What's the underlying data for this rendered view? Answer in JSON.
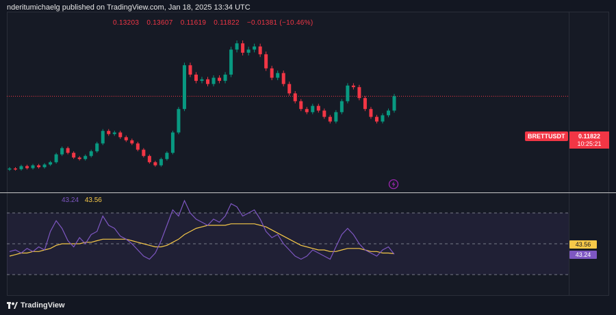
{
  "header": {
    "published_by": "nderitumichaelg published on TradingView.com, Jan 18, 2025 13:34 UTC"
  },
  "ohlc": {
    "open": "0.13203",
    "high": "0.13607",
    "low": "0.11619",
    "close": "0.11822",
    "change": "−0.01381 (−10.46%)"
  },
  "symbol": "BRETTUSDT",
  "last_price": {
    "value": "0.11822",
    "countdown": "10:25:21"
  },
  "rsi": {
    "rsi_value": "43.24",
    "ma_value": "43.56"
  },
  "footer": {
    "brand": "TradingView"
  },
  "colors": {
    "up": "#089981",
    "down": "#f23645",
    "rsi": "#7e57c2",
    "rsi_ma": "#f7c948",
    "background": "#131722"
  },
  "chart_data": {
    "type": "candlestick",
    "series": [
      {
        "name": "price",
        "closes": [
          0.072,
          0.0715,
          0.0735,
          0.0722,
          0.074,
          0.0728,
          0.0745,
          0.076,
          0.081,
          0.085,
          0.082,
          0.079,
          0.078,
          0.08,
          0.083,
          0.088,
          0.096,
          0.094,
          0.095,
          0.092,
          0.09,
          0.088,
          0.084,
          0.08,
          0.076,
          0.074,
          0.078,
          0.082,
          0.095,
          0.11,
          0.138,
          0.132,
          0.128,
          0.129,
          0.126,
          0.13,
          0.128,
          0.132,
          0.148,
          0.152,
          0.146,
          0.148,
          0.15,
          0.145,
          0.136,
          0.13,
          0.133,
          0.126,
          0.12,
          0.115,
          0.11,
          0.108,
          0.112,
          0.109,
          0.105,
          0.102,
          0.108,
          0.115,
          0.125,
          0.124,
          0.117,
          0.11,
          0.105,
          0.102,
          0.106,
          0.109,
          0.1182
        ]
      },
      {
        "name": "RSI",
        "values": [
          45,
          46,
          44,
          47,
          45,
          48,
          46,
          58,
          65,
          60,
          52,
          48,
          54,
          50,
          56,
          58,
          68,
          62,
          60,
          55,
          53,
          50,
          46,
          42,
          40,
          44,
          52,
          62,
          72,
          68,
          78,
          70,
          66,
          64,
          62,
          66,
          64,
          68,
          76,
          74,
          68,
          70,
          72,
          66,
          58,
          54,
          56,
          50,
          46,
          42,
          40,
          42,
          46,
          44,
          42,
          40,
          48,
          56,
          60,
          56,
          50,
          46,
          44,
          42,
          46,
          48,
          43.24
        ]
      },
      {
        "name": "RSI MA",
        "values": [
          42,
          43,
          44,
          44,
          45,
          45,
          46,
          47,
          49,
          50,
          50,
          50,
          50,
          51,
          51,
          52,
          53,
          53,
          53,
          53,
          53,
          52,
          51,
          50,
          49,
          48,
          48,
          49,
          51,
          53,
          56,
          58,
          60,
          61,
          62,
          62,
          62,
          62,
          63,
          63,
          63,
          63,
          63,
          62,
          61,
          59,
          57,
          55,
          53,
          51,
          49,
          48,
          47,
          46,
          46,
          45,
          45,
          46,
          47,
          47,
          47,
          46,
          45,
          45,
          44,
          44,
          43.56
        ]
      }
    ]
  }
}
